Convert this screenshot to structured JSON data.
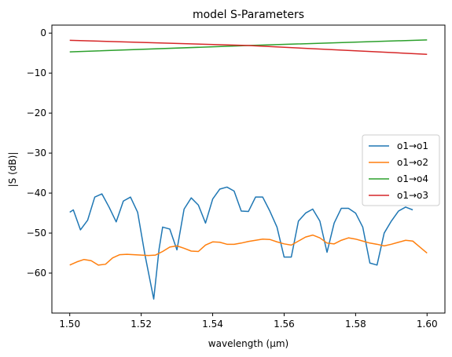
{
  "chart_data": {
    "type": "line",
    "title": "model S-Parameters",
    "xlabel": "wavelength (μm)",
    "ylabel": "|S (dB)|",
    "xlim": [
      1.495,
      1.605
    ],
    "ylim": [
      -70,
      2
    ],
    "xticks": [
      1.5,
      1.52,
      1.54,
      1.56,
      1.58,
      1.6
    ],
    "xtick_labels": [
      "1.50",
      "1.52",
      "1.54",
      "1.56",
      "1.58",
      "1.60"
    ],
    "yticks": [
      0,
      -10,
      -20,
      -30,
      -40,
      -50,
      -60
    ],
    "ytick_labels": [
      "0",
      "−10",
      "−20",
      "−30",
      "−40",
      "−50",
      "−60"
    ],
    "grid": false,
    "legend_position": "center-right",
    "series": [
      {
        "name": "o1→o1",
        "color": "#1f77b4",
        "points": [
          [
            1.5,
            -44.8
          ],
          [
            1.501,
            -44.2
          ],
          [
            1.503,
            -49.2
          ],
          [
            1.505,
            -46.8
          ],
          [
            1.507,
            -41.0
          ],
          [
            1.509,
            -40.2
          ],
          [
            1.511,
            -43.5
          ],
          [
            1.513,
            -47.2
          ],
          [
            1.515,
            -42.0
          ],
          [
            1.517,
            -41.0
          ],
          [
            1.519,
            -44.8
          ],
          [
            1.521,
            -55.2
          ],
          [
            1.5235,
            -66.5
          ],
          [
            1.525,
            -54.0
          ],
          [
            1.526,
            -48.5
          ],
          [
            1.528,
            -49.0
          ],
          [
            1.53,
            -54.2
          ],
          [
            1.532,
            -44.0
          ],
          [
            1.534,
            -41.2
          ],
          [
            1.536,
            -43.0
          ],
          [
            1.538,
            -47.5
          ],
          [
            1.54,
            -41.5
          ],
          [
            1.542,
            -39.0
          ],
          [
            1.544,
            -38.5
          ],
          [
            1.546,
            -39.5
          ],
          [
            1.548,
            -44.5
          ],
          [
            1.55,
            -44.6
          ],
          [
            1.552,
            -41.0
          ],
          [
            1.554,
            -41.0
          ],
          [
            1.556,
            -44.5
          ],
          [
            1.558,
            -48.5
          ],
          [
            1.56,
            -56.0
          ],
          [
            1.562,
            -56.0
          ],
          [
            1.564,
            -47.0
          ],
          [
            1.566,
            -45.0
          ],
          [
            1.568,
            -44.0
          ],
          [
            1.57,
            -47.0
          ],
          [
            1.572,
            -54.8
          ],
          [
            1.574,
            -47.5
          ],
          [
            1.576,
            -43.8
          ],
          [
            1.578,
            -43.8
          ],
          [
            1.58,
            -45.0
          ],
          [
            1.582,
            -48.5
          ],
          [
            1.584,
            -57.5
          ],
          [
            1.586,
            -58.0
          ],
          [
            1.588,
            -50.0
          ],
          [
            1.59,
            -47.0
          ],
          [
            1.592,
            -44.5
          ],
          [
            1.594,
            -43.5
          ],
          [
            1.596,
            -44.2
          ]
        ]
      },
      {
        "name": "o1→o2",
        "color": "#ff7f0e",
        "points": [
          [
            1.5,
            -58.0
          ],
          [
            1.502,
            -57.2
          ],
          [
            1.504,
            -56.6
          ],
          [
            1.506,
            -56.9
          ],
          [
            1.508,
            -58.0
          ],
          [
            1.51,
            -57.8
          ],
          [
            1.512,
            -56.2
          ],
          [
            1.514,
            -55.4
          ],
          [
            1.516,
            -55.3
          ],
          [
            1.518,
            -55.4
          ],
          [
            1.52,
            -55.5
          ],
          [
            1.522,
            -55.6
          ],
          [
            1.524,
            -55.5
          ],
          [
            1.526,
            -54.6
          ],
          [
            1.528,
            -53.5
          ],
          [
            1.53,
            -53.2
          ],
          [
            1.532,
            -53.8
          ],
          [
            1.534,
            -54.5
          ],
          [
            1.536,
            -54.6
          ],
          [
            1.538,
            -53.0
          ],
          [
            1.54,
            -52.2
          ],
          [
            1.542,
            -52.3
          ],
          [
            1.544,
            -52.8
          ],
          [
            1.546,
            -52.8
          ],
          [
            1.548,
            -52.5
          ],
          [
            1.55,
            -52.1
          ],
          [
            1.552,
            -51.8
          ],
          [
            1.554,
            -51.5
          ],
          [
            1.556,
            -51.6
          ],
          [
            1.558,
            -52.2
          ],
          [
            1.56,
            -52.7
          ],
          [
            1.562,
            -53.0
          ],
          [
            1.564,
            -52.0
          ],
          [
            1.566,
            -51.0
          ],
          [
            1.568,
            -50.5
          ],
          [
            1.57,
            -51.2
          ],
          [
            1.572,
            -52.5
          ],
          [
            1.574,
            -52.7
          ],
          [
            1.576,
            -51.8
          ],
          [
            1.578,
            -51.2
          ],
          [
            1.58,
            -51.5
          ],
          [
            1.582,
            -52.0
          ],
          [
            1.584,
            -52.5
          ],
          [
            1.586,
            -52.8
          ],
          [
            1.588,
            -53.2
          ],
          [
            1.59,
            -52.8
          ],
          [
            1.592,
            -52.3
          ],
          [
            1.594,
            -51.8
          ],
          [
            1.596,
            -52.0
          ],
          [
            1.598,
            -53.5
          ],
          [
            1.6,
            -55.0
          ]
        ]
      },
      {
        "name": "o1→o4",
        "color": "#2ca02c",
        "points": [
          [
            1.5,
            -4.7
          ],
          [
            1.55,
            -3.1
          ],
          [
            1.6,
            -1.7
          ]
        ]
      },
      {
        "name": "o1→o3",
        "color": "#d62728",
        "points": [
          [
            1.5,
            -1.8
          ],
          [
            1.55,
            -3.1
          ],
          [
            1.6,
            -5.3
          ]
        ]
      }
    ]
  }
}
